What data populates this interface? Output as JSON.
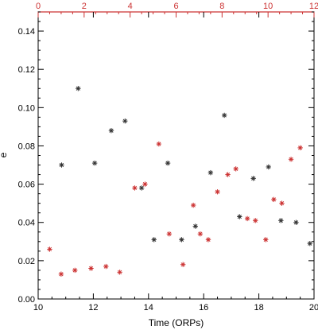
{
  "chart_data": {
    "type": "scatter",
    "title": "",
    "xlabel": "Time (ORPs)",
    "ylabel": "e",
    "xlim": [
      10,
      20
    ],
    "ylim": [
      0.0,
      0.15
    ],
    "x_ticks": [
      "10",
      "12",
      "14",
      "16",
      "18",
      "20"
    ],
    "y_ticks": [
      "0.00",
      "0.02",
      "0.04",
      "0.06",
      "0.08",
      "0.10",
      "0.12",
      "0.14"
    ],
    "top_axis": {
      "xlim": [
        0,
        12
      ],
      "ticks": [
        "0",
        "2",
        "4",
        "6",
        "8",
        "10",
        "12"
      ],
      "color": "#cc3333"
    },
    "grid": false,
    "legend": "none",
    "marker": "asterisk",
    "series": [
      {
        "axis": "bottom",
        "color": "#333333",
        "points": [
          {
            "x": 10.85,
            "y": 0.07
          },
          {
            "x": 11.45,
            "y": 0.11
          },
          {
            "x": 12.05,
            "y": 0.071
          },
          {
            "x": 12.65,
            "y": 0.088
          },
          {
            "x": 13.15,
            "y": 0.093
          },
          {
            "x": 13.75,
            "y": 0.058
          },
          {
            "x": 14.2,
            "y": 0.031
          },
          {
            "x": 14.7,
            "y": 0.071
          },
          {
            "x": 15.2,
            "y": 0.031
          },
          {
            "x": 15.7,
            "y": 0.038
          },
          {
            "x": 16.25,
            "y": 0.066
          },
          {
            "x": 16.75,
            "y": 0.096
          },
          {
            "x": 17.3,
            "y": 0.043
          },
          {
            "x": 17.8,
            "y": 0.063
          },
          {
            "x": 18.35,
            "y": 0.069
          },
          {
            "x": 18.8,
            "y": 0.041
          },
          {
            "x": 19.35,
            "y": 0.04
          },
          {
            "x": 19.85,
            "y": 0.029
          }
        ]
      },
      {
        "axis": "top",
        "color": "#cc3333",
        "points": [
          {
            "x": 0.5,
            "y": 0.026
          },
          {
            "x": 1.0,
            "y": 0.013
          },
          {
            "x": 1.6,
            "y": 0.015
          },
          {
            "x": 2.3,
            "y": 0.016
          },
          {
            "x": 2.95,
            "y": 0.017
          },
          {
            "x": 3.55,
            "y": 0.014
          },
          {
            "x": 4.2,
            "y": 0.058
          },
          {
            "x": 4.65,
            "y": 0.06
          },
          {
            "x": 5.25,
            "y": 0.081
          },
          {
            "x": 5.7,
            "y": 0.034
          },
          {
            "x": 6.3,
            "y": 0.018
          },
          {
            "x": 6.75,
            "y": 0.049
          },
          {
            "x": 7.05,
            "y": 0.034
          },
          {
            "x": 7.4,
            "y": 0.031
          },
          {
            "x": 7.8,
            "y": 0.056
          },
          {
            "x": 8.25,
            "y": 0.065
          },
          {
            "x": 8.6,
            "y": 0.068
          },
          {
            "x": 9.1,
            "y": 0.042
          },
          {
            "x": 9.45,
            "y": 0.041
          },
          {
            "x": 9.9,
            "y": 0.031
          },
          {
            "x": 10.25,
            "y": 0.052
          },
          {
            "x": 10.6,
            "y": 0.05
          },
          {
            "x": 11.0,
            "y": 0.073
          },
          {
            "x": 11.4,
            "y": 0.079
          }
        ]
      }
    ]
  }
}
